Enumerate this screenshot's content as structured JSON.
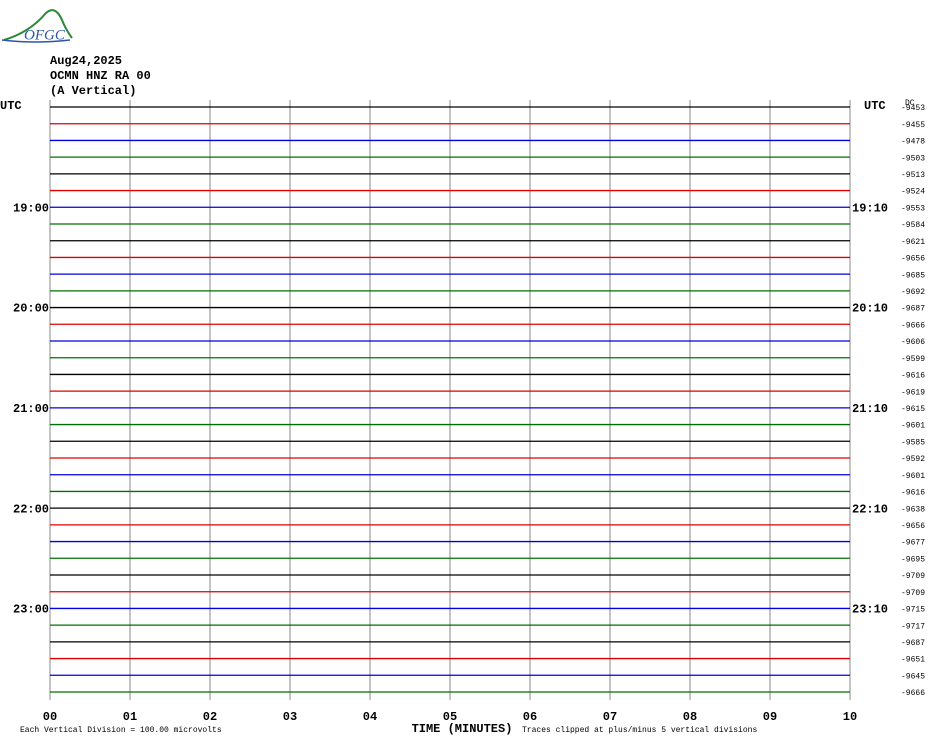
{
  "logo_text": "OFGC",
  "chart_data": {
    "type": "helicorder",
    "date": "Aug24,2025",
    "station": "OCMN HNZ RA 00",
    "component": "(A Vertical)",
    "left_unit": "UTC",
    "right_unit": "UTC",
    "dc_label": "DC",
    "x_label": "TIME (MINUTES)",
    "scale_note": "Each Vertical Division =  100.00 microvolts",
    "clip_note": "Traces clipped at plus/minus 5 vertical divisions",
    "xlim": [
      0,
      10
    ],
    "xticks": [
      {
        "value": 0,
        "label": "00"
      },
      {
        "value": 1,
        "label": "01"
      },
      {
        "value": 2,
        "label": "02"
      },
      {
        "value": 3,
        "label": "03"
      },
      {
        "value": 4,
        "label": "04"
      },
      {
        "value": 5,
        "label": "05"
      },
      {
        "value": 6,
        "label": "06"
      },
      {
        "value": 7,
        "label": "07"
      },
      {
        "value": 8,
        "label": "08"
      },
      {
        "value": 9,
        "label": "09"
      },
      10
    ],
    "colors": [
      "#000000",
      "#e00000",
      "#0000e0",
      "#007000"
    ],
    "dc_offsets": [
      -9453,
      -9455,
      -9478,
      -9503,
      -9513,
      -9524,
      -9553,
      -9584,
      -9621,
      -9656,
      -9685,
      -9692,
      -9687,
      -9666,
      -9606,
      -9599,
      -9616,
      -9619,
      -9615,
      -9601,
      -9585,
      -9592,
      -9601,
      -9616,
      -9638,
      -9656,
      -9677,
      -9695,
      -9709,
      -9709,
      -9715,
      -9717,
      -9687,
      -9651,
      -9645,
      -9666
    ],
    "hour_labels": [
      null,
      null,
      null,
      null,
      null,
      null,
      "19:00",
      null,
      null,
      null,
      null,
      null,
      "20:00",
      null,
      null,
      null,
      null,
      null,
      "21:00",
      null,
      null,
      null,
      null,
      null,
      "22:00",
      null,
      null,
      null,
      null,
      null,
      "23:00",
      null,
      null,
      null,
      null,
      null
    ],
    "right_labels": [
      null,
      null,
      null,
      null,
      null,
      null,
      "19:10",
      null,
      null,
      null,
      null,
      null,
      "20:10",
      null,
      null,
      null,
      null,
      null,
      "21:10",
      null,
      null,
      null,
      null,
      null,
      "22:10",
      null,
      null,
      null,
      null,
      null,
      "23:10",
      null,
      null,
      null,
      null,
      null
    ]
  }
}
